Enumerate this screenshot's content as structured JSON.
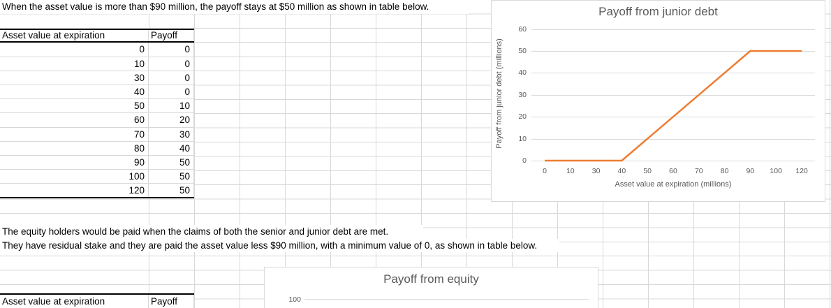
{
  "sheet": {
    "note_top": "When the asset value is more than $90 million, the payoff stays at $50 million as shown in table below.",
    "note_equity_1": "The equity holders would be paid when the claims of both the senior and junior debt are met.",
    "note_equity_2": "They have residual stake and they are paid the asset value less $90 million, with a minimum value of 0, as shown in table below.",
    "table1": {
      "headers": [
        "Asset value at expiration",
        "Payoff"
      ],
      "rows": [
        [
          0,
          0
        ],
        [
          10,
          0
        ],
        [
          30,
          0
        ],
        [
          40,
          0
        ],
        [
          50,
          10
        ],
        [
          60,
          20
        ],
        [
          70,
          30
        ],
        [
          80,
          40
        ],
        [
          90,
          50
        ],
        [
          100,
          50
        ],
        [
          120,
          50
        ]
      ]
    },
    "table2": {
      "headers": [
        "Asset value at expiration",
        "Payoff"
      ]
    }
  },
  "chart_data": [
    {
      "type": "line",
      "title": "Payoff from junior debt",
      "categories": [
        0,
        10,
        30,
        40,
        50,
        60,
        70,
        80,
        90,
        100,
        120
      ],
      "values": [
        0,
        0,
        0,
        0,
        10,
        20,
        30,
        40,
        50,
        50,
        50
      ],
      "xlabel": "Asset value at expiration (millions)",
      "ylabel": "Payoff from junior debt (millions)",
      "ylim": [
        0,
        60
      ],
      "yticks": [
        0,
        10,
        20,
        30,
        40,
        50,
        60
      ],
      "grid": true,
      "legend": false,
      "line_color": "#ED7D31"
    },
    {
      "type": "line",
      "title": "Payoff from equity",
      "yticks_visible": [
        100
      ],
      "xlabel": "",
      "ylabel": ""
    }
  ],
  "colors": {
    "accent_orange": "#ED7D31",
    "chart_text": "#595959",
    "sheet_gridline": "#D8D8D8",
    "table_border": "#000000"
  }
}
